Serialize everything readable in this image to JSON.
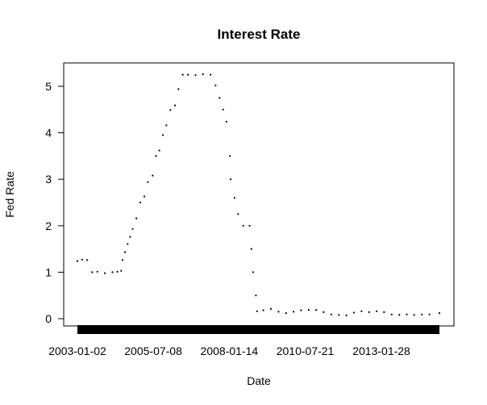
{
  "chart_data": {
    "type": "scatter",
    "title": "Interest Rate",
    "xlabel": "Date",
    "ylabel": "Fed Rate",
    "x_tick_labels": [
      "2003-01-02",
      "2005-07-08",
      "2008-01-14",
      "2010-07-21",
      "2013-01-28"
    ],
    "y_ticks": [
      0,
      1,
      2,
      3,
      4,
      5
    ],
    "xlim": [
      "2003-01-02",
      "2014-12-31"
    ],
    "ylim": [
      -0.15,
      5.5
    ],
    "grid": false,
    "marker_color": "#000000",
    "series": [
      {
        "x": [
          "2003-01-02",
          "2003-03-01",
          "2003-05-01",
          "2003-07-01",
          "2003-09-01",
          "2003-12-01",
          "2004-03-01",
          "2004-05-01",
          "2004-06-15",
          "2004-07-01",
          "2004-08-01",
          "2004-09-01",
          "2004-10-01",
          "2004-11-01",
          "2004-12-15",
          "2005-02-01",
          "2005-03-22",
          "2005-05-03",
          "2005-06-30",
          "2005-08-09",
          "2005-09-20",
          "2005-11-01",
          "2005-12-13",
          "2006-01-31",
          "2006-03-28",
          "2006-05-10",
          "2006-06-29",
          "2006-09-01",
          "2006-12-01",
          "2007-03-01",
          "2007-06-01",
          "2007-08-01",
          "2007-09-18",
          "2007-10-31",
          "2007-12-11",
          "2008-01-22",
          "2008-01-30",
          "2008-03-18",
          "2008-04-30",
          "2008-07-01",
          "2008-09-15",
          "2008-10-08",
          "2008-10-29",
          "2008-12-01",
          "2008-12-16",
          "2009-03-01",
          "2009-06-01",
          "2009-09-01",
          "2009-12-01",
          "2010-03-01",
          "2010-06-01",
          "2010-09-01",
          "2010-12-01",
          "2011-03-01",
          "2011-06-01",
          "2011-09-01",
          "2011-12-01",
          "2012-03-01",
          "2012-06-01",
          "2012-09-01",
          "2012-12-01",
          "2013-03-01",
          "2013-06-01",
          "2013-09-01",
          "2013-12-01",
          "2014-03-01",
          "2014-06-01",
          "2014-09-01",
          "2014-12-31"
        ],
        "y": [
          1.24,
          1.27,
          1.26,
          1.0,
          1.01,
          0.98,
          1.0,
          1.01,
          1.03,
          1.26,
          1.43,
          1.61,
          1.76,
          1.93,
          2.16,
          2.5,
          2.63,
          2.94,
          3.08,
          3.5,
          3.62,
          3.95,
          4.16,
          4.49,
          4.59,
          4.94,
          5.25,
          5.25,
          5.24,
          5.26,
          5.25,
          5.02,
          4.75,
          4.5,
          4.24,
          3.5,
          3.0,
          2.6,
          2.25,
          2.0,
          2.0,
          1.5,
          1.0,
          0.5,
          0.16,
          0.18,
          0.21,
          0.15,
          0.12,
          0.15,
          0.18,
          0.19,
          0.19,
          0.14,
          0.09,
          0.08,
          0.07,
          0.13,
          0.16,
          0.14,
          0.16,
          0.14,
          0.09,
          0.08,
          0.09,
          0.08,
          0.09,
          0.09,
          0.12
        ]
      }
    ]
  }
}
